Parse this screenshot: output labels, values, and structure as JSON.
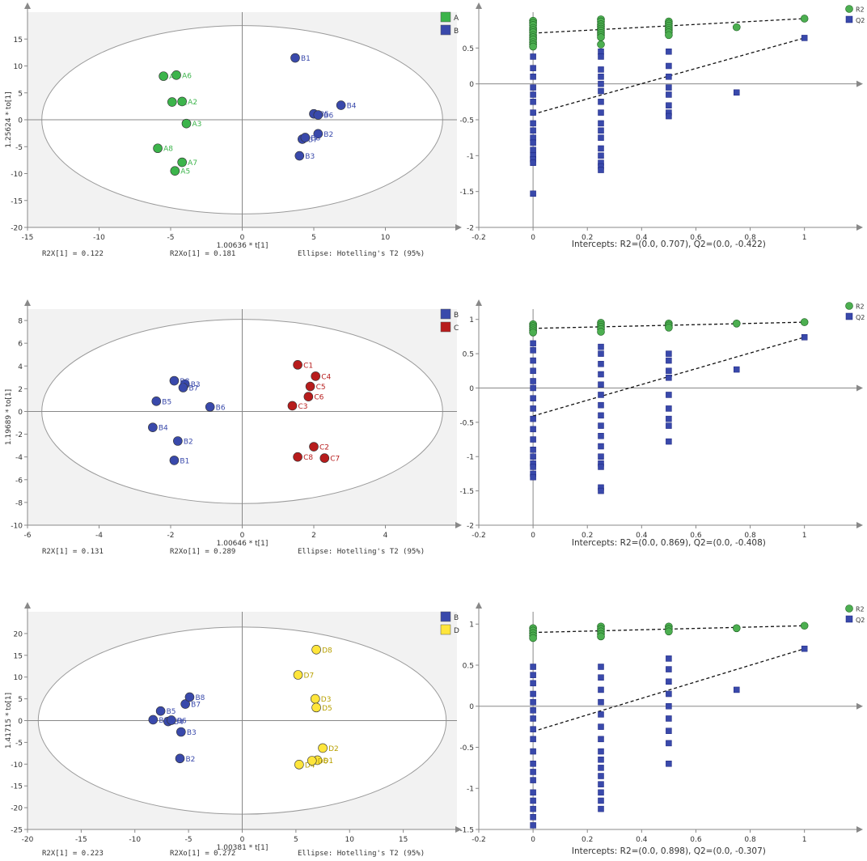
{
  "colors": {
    "A": "#3cb44b",
    "B": "#3949ab",
    "C": "#b71c1c",
    "D": "#ffe53b",
    "R2": "#4caf50",
    "Q2": "#3949ab",
    "score_bg": "#f2f2f2",
    "axis": "#888888",
    "text": "#333333"
  },
  "chart_data": [
    {
      "type": "scatter",
      "id": "score1",
      "title": "",
      "xlabel": "1.00636 * t[1]",
      "ylabel": "1.25624 * to[1]",
      "xlim": [
        -15,
        15
      ],
      "ylim": [
        -20,
        20
      ],
      "xticks": [
        -15,
        -10,
        -5,
        0,
        5,
        10
      ],
      "yticks": [
        -20,
        -15,
        -10,
        -5,
        0,
        5,
        10,
        15
      ],
      "ellipse": {
        "rx": 14,
        "ry": 17.5
      },
      "legend": [
        {
          "label": "A",
          "group": "A"
        },
        {
          "label": "B",
          "group": "B"
        }
      ],
      "points": [
        {
          "label": "A1",
          "group": "A",
          "x": -4.9,
          "y": 3.3
        },
        {
          "label": "A2",
          "group": "A",
          "x": -4.2,
          "y": 3.4
        },
        {
          "label": "A3",
          "group": "A",
          "x": -3.9,
          "y": -0.7
        },
        {
          "label": "A4",
          "group": "A",
          "x": -5.5,
          "y": 8.1
        },
        {
          "label": "A5",
          "group": "A",
          "x": -4.7,
          "y": -9.5
        },
        {
          "label": "A6",
          "group": "A",
          "x": -4.6,
          "y": 8.3
        },
        {
          "label": "A7",
          "group": "A",
          "x": -4.2,
          "y": -7.9
        },
        {
          "label": "A8",
          "group": "A",
          "x": -5.9,
          "y": -5.3
        },
        {
          "label": "B1",
          "group": "B",
          "x": 3.7,
          "y": 11.5
        },
        {
          "label": "B2",
          "group": "B",
          "x": 5.3,
          "y": -2.6
        },
        {
          "label": "B3",
          "group": "B",
          "x": 4.0,
          "y": -6.7
        },
        {
          "label": "B4",
          "group": "B",
          "x": 6.9,
          "y": 2.7
        },
        {
          "label": "B5",
          "group": "B",
          "x": 5.0,
          "y": 1.1
        },
        {
          "label": "B6",
          "group": "B",
          "x": 5.3,
          "y": 0.9
        },
        {
          "label": "B7",
          "group": "B",
          "x": 4.2,
          "y": -3.6
        },
        {
          "label": "B8",
          "group": "B",
          "x": 4.4,
          "y": -3.3
        }
      ],
      "stats": {
        "r2x": "R2X[1] = 0.122",
        "r2xo": "R2Xo[1] = 0.181",
        "ellipse": "Ellipse: Hotelling's T2 (95%)"
      }
    },
    {
      "type": "scatter",
      "id": "perm1",
      "title": "",
      "xlabel": "Intercepts: R2=(0.0, 0.707), Q2=(0.0, -0.422)",
      "ylabel": "",
      "xlim": [
        -0.2,
        1.15
      ],
      "ylim": [
        -2,
        1.0
      ],
      "xticks": [
        -0.2,
        0,
        0.2,
        0.4,
        0.6,
        0.8,
        1
      ],
      "yticks": [
        -2,
        -1.5,
        -1,
        -0.5,
        0,
        0.5
      ],
      "legend": [
        {
          "label": "R2",
          "series": "R2"
        },
        {
          "label": "Q2",
          "series": "Q2"
        }
      ],
      "series": [
        {
          "name": "R2",
          "x": [
            0,
            0,
            0,
            0,
            0,
            0,
            0,
            0,
            0,
            0,
            0,
            0,
            0.25,
            0.25,
            0.25,
            0.25,
            0.25,
            0.25,
            0.25,
            0.25,
            0.25,
            0.25,
            0.5,
            0.5,
            0.5,
            0.5,
            0.5,
            0.5,
            0.5,
            0.75,
            1.0
          ],
          "y": [
            0.88,
            0.85,
            0.82,
            0.78,
            0.75,
            0.72,
            0.68,
            0.65,
            0.62,
            0.58,
            0.55,
            0.52,
            0.9,
            0.87,
            0.83,
            0.8,
            0.77,
            0.74,
            0.71,
            0.68,
            0.65,
            0.55,
            0.87,
            0.84,
            0.81,
            0.78,
            0.75,
            0.72,
            0.68,
            0.79,
            0.91
          ]
        },
        {
          "name": "Q2",
          "x": [
            0,
            0,
            0,
            0,
            0,
            0,
            0,
            0,
            0,
            0,
            0,
            0,
            0,
            0,
            0,
            0,
            0.25,
            0.25,
            0.25,
            0.25,
            0.25,
            0.25,
            0.25,
            0.25,
            0.25,
            0.25,
            0.25,
            0.25,
            0.25,
            0.25,
            0.25,
            0.25,
            0.5,
            0.5,
            0.5,
            0.5,
            0.5,
            0.5,
            0.5,
            0.5,
            0.75,
            1.0
          ],
          "y": [
            0.38,
            0.22,
            0.1,
            -0.05,
            -0.15,
            -0.25,
            -0.4,
            -0.55,
            -0.65,
            -0.75,
            -0.82,
            -0.92,
            -1.0,
            -1.05,
            -1.1,
            -1.53,
            0.45,
            0.38,
            0.2,
            0.1,
            0.0,
            -0.1,
            -0.25,
            -0.4,
            -0.55,
            -0.65,
            -0.75,
            -0.9,
            -1.0,
            -1.1,
            -1.15,
            -1.2,
            0.45,
            0.25,
            0.1,
            -0.05,
            -0.15,
            -0.3,
            -0.4,
            -0.45,
            -0.12,
            0.64
          ]
        }
      ],
      "fit": {
        "R2": [
          0.707,
          0.91
        ],
        "Q2": [
          -0.422,
          0.64
        ]
      }
    },
    {
      "type": "scatter",
      "id": "score2",
      "title": "",
      "xlabel": "1.00646 * t[1]",
      "ylabel": "1.19689 * to[1]",
      "xlim": [
        -6,
        6
      ],
      "ylim": [
        -10,
        9
      ],
      "xticks": [
        -6,
        -4,
        -2,
        0,
        2,
        4
      ],
      "yticks": [
        -10,
        -8,
        -6,
        -4,
        -2,
        0,
        2,
        4,
        6,
        8
      ],
      "ellipse": {
        "rx": 5.6,
        "ry": 8.1
      },
      "legend": [
        {
          "label": "B",
          "group": "B"
        },
        {
          "label": "C",
          "group": "C"
        }
      ],
      "points": [
        {
          "label": "B1",
          "group": "B",
          "x": -1.9,
          "y": -4.3
        },
        {
          "label": "B2",
          "group": "B",
          "x": -1.8,
          "y": -2.6
        },
        {
          "label": "B3",
          "group": "B",
          "x": -1.6,
          "y": 2.4
        },
        {
          "label": "B4",
          "group": "B",
          "x": -2.5,
          "y": -1.4
        },
        {
          "label": "B5",
          "group": "B",
          "x": -2.4,
          "y": 0.9
        },
        {
          "label": "B6",
          "group": "B",
          "x": -0.9,
          "y": 0.4
        },
        {
          "label": "B7",
          "group": "B",
          "x": -1.65,
          "y": 2.1
        },
        {
          "label": "B8",
          "group": "B",
          "x": -1.9,
          "y": 2.7
        },
        {
          "label": "C1",
          "group": "C",
          "x": 1.55,
          "y": 4.1
        },
        {
          "label": "C2",
          "group": "C",
          "x": 2.0,
          "y": -3.1
        },
        {
          "label": "C3",
          "group": "C",
          "x": 1.4,
          "y": 0.5
        },
        {
          "label": "C4",
          "group": "C",
          "x": 2.05,
          "y": 3.1
        },
        {
          "label": "C5",
          "group": "C",
          "x": 1.9,
          "y": 2.2
        },
        {
          "label": "C6",
          "group": "C",
          "x": 1.85,
          "y": 1.3
        },
        {
          "label": "C7",
          "group": "C",
          "x": 2.3,
          "y": -4.1
        },
        {
          "label": "C8",
          "group": "C",
          "x": 1.55,
          "y": -4.0
        }
      ],
      "stats": {
        "r2x": "R2X[1] = 0.131",
        "r2xo": "R2Xo[1] = 0.289",
        "ellipse": "Ellipse: Hotelling's T2 (95%)"
      }
    },
    {
      "type": "scatter",
      "id": "perm2",
      "title": "",
      "xlabel": "Intercepts: R2=(0.0, 0.869), Q2=(0.0, -0.408)",
      "ylabel": "",
      "xlim": [
        -0.2,
        1.15
      ],
      "ylim": [
        -2,
        1.15
      ],
      "xticks": [
        -0.2,
        0,
        0.2,
        0.4,
        0.6,
        0.8,
        1
      ],
      "yticks": [
        -2,
        -1.5,
        -1,
        -0.5,
        0,
        0.5,
        1
      ],
      "legend": [
        {
          "label": "R2",
          "series": "R2"
        },
        {
          "label": "Q2",
          "series": "Q2"
        }
      ],
      "series": [
        {
          "name": "R2",
          "x": [
            0,
            0,
            0,
            0,
            0,
            0.25,
            0.25,
            0.25,
            0.25,
            0.25,
            0.5,
            0.5,
            0.5,
            0.75,
            1.0
          ],
          "y": [
            0.93,
            0.9,
            0.87,
            0.84,
            0.81,
            0.95,
            0.92,
            0.89,
            0.86,
            0.82,
            0.94,
            0.91,
            0.88,
            0.94,
            0.96
          ]
        },
        {
          "name": "Q2",
          "x": [
            0,
            0,
            0,
            0,
            0,
            0,
            0,
            0,
            0,
            0,
            0,
            0,
            0,
            0,
            0,
            0,
            0,
            0.25,
            0.25,
            0.25,
            0.25,
            0.25,
            0.25,
            0.25,
            0.25,
            0.25,
            0.25,
            0.25,
            0.25,
            0.25,
            0.25,
            0.25,
            0.25,
            0.5,
            0.5,
            0.5,
            0.5,
            0.5,
            0.5,
            0.5,
            0.5,
            0.5,
            0.75,
            1.0
          ],
          "y": [
            0.65,
            0.55,
            0.4,
            0.25,
            0.1,
            0.0,
            -0.15,
            -0.3,
            -0.45,
            -0.6,
            -0.75,
            -0.9,
            -1.0,
            -1.1,
            -1.15,
            -1.25,
            -1.3,
            0.6,
            0.5,
            0.35,
            0.2,
            0.05,
            -0.1,
            -0.25,
            -0.4,
            -0.55,
            -0.7,
            -0.85,
            -1.0,
            -1.1,
            -1.15,
            -1.45,
            -1.5,
            0.5,
            0.4,
            0.25,
            0.15,
            -0.1,
            -0.3,
            -0.45,
            -0.55,
            -0.78,
            0.27,
            0.74
          ]
        }
      ],
      "fit": {
        "R2": [
          0.869,
          0.96
        ],
        "Q2": [
          -0.408,
          0.74
        ]
      }
    },
    {
      "type": "scatter",
      "id": "score3",
      "title": "",
      "xlabel": "1.00381 * t[1]",
      "ylabel": "1.41715 * to[1]",
      "xlim": [
        -20,
        20
      ],
      "ylim": [
        -25,
        25
      ],
      "xticks": [
        -20,
        -15,
        -10,
        -5,
        0,
        5,
        10,
        15
      ],
      "yticks": [
        -25,
        -20,
        -15,
        -10,
        -5,
        0,
        5,
        10,
        15,
        20
      ],
      "ellipse": {
        "rx": 19,
        "ry": 21.5
      },
      "legend": [
        {
          "label": "B",
          "group": "B"
        },
        {
          "label": "D",
          "group": "D"
        }
      ],
      "points": [
        {
          "label": "B1",
          "group": "B",
          "x": -8.3,
          "y": 0.2
        },
        {
          "label": "B2",
          "group": "B",
          "x": -5.8,
          "y": -8.7
        },
        {
          "label": "B3",
          "group": "B",
          "x": -5.7,
          "y": -2.6
        },
        {
          "label": "B4",
          "group": "B",
          "x": -6.9,
          "y": -0.2
        },
        {
          "label": "B5",
          "group": "B",
          "x": -7.6,
          "y": 2.2
        },
        {
          "label": "B6",
          "group": "B",
          "x": -6.6,
          "y": 0.1
        },
        {
          "label": "B7",
          "group": "B",
          "x": -5.3,
          "y": 3.8
        },
        {
          "label": "B8",
          "group": "B",
          "x": -4.9,
          "y": 5.4
        },
        {
          "label": "D1",
          "group": "D",
          "x": 7.0,
          "y": -9.1
        },
        {
          "label": "D2",
          "group": "D",
          "x": 7.5,
          "y": -6.3
        },
        {
          "label": "D3",
          "group": "D",
          "x": 6.8,
          "y": 5.0
        },
        {
          "label": "D4",
          "group": "D",
          "x": 5.3,
          "y": -10.1
        },
        {
          "label": "D5",
          "group": "D",
          "x": 6.9,
          "y": 3.0
        },
        {
          "label": "D6",
          "group": "D",
          "x": 6.5,
          "y": -9.2
        },
        {
          "label": "D7",
          "group": "D",
          "x": 5.2,
          "y": 10.5
        },
        {
          "label": "D8",
          "group": "D",
          "x": 6.9,
          "y": 16.3
        }
      ],
      "stats": {
        "r2x": "R2X[1] = 0.223",
        "r2xo": "R2Xo[1] = 0.272",
        "ellipse": "Ellipse: Hotelling's T2 (95%)"
      }
    },
    {
      "type": "scatter",
      "id": "perm3",
      "title": "",
      "xlabel": "Intercepts: R2=(0.0, 0.898), Q2=(0.0, -0.307)",
      "ylabel": "",
      "xlim": [
        -0.2,
        1.15
      ],
      "ylim": [
        -1.5,
        1.15
      ],
      "xticks": [
        -0.2,
        0,
        0.2,
        0.4,
        0.6,
        0.8,
        1
      ],
      "yticks": [
        -1.5,
        -1,
        -0.5,
        0,
        0.5,
        1
      ],
      "legend": [
        {
          "label": "R2",
          "series": "R2"
        },
        {
          "label": "Q2",
          "series": "Q2"
        }
      ],
      "series": [
        {
          "name": "R2",
          "x": [
            0,
            0,
            0,
            0,
            0,
            0.25,
            0.25,
            0.25,
            0.25,
            0.25,
            0.5,
            0.5,
            0.5,
            0.75,
            1.0
          ],
          "y": [
            0.95,
            0.92,
            0.89,
            0.86,
            0.83,
            0.97,
            0.94,
            0.91,
            0.88,
            0.85,
            0.97,
            0.94,
            0.91,
            0.95,
            0.98
          ]
        },
        {
          "name": "Q2",
          "x": [
            0,
            0,
            0,
            0,
            0,
            0,
            0,
            0,
            0,
            0,
            0,
            0,
            0,
            0,
            0,
            0,
            0,
            0,
            0.25,
            0.25,
            0.25,
            0.25,
            0.25,
            0.25,
            0.25,
            0.25,
            0.25,
            0.25,
            0.25,
            0.25,
            0.25,
            0.25,
            0.25,
            0.5,
            0.5,
            0.5,
            0.5,
            0.5,
            0.5,
            0.5,
            0.5,
            0.5,
            0.75,
            1.0
          ],
          "y": [
            0.48,
            0.38,
            0.28,
            0.15,
            0.05,
            -0.05,
            -0.15,
            -0.28,
            -0.4,
            -0.55,
            -0.7,
            -0.8,
            -0.9,
            -1.05,
            -1.15,
            -1.25,
            -1.35,
            -1.45,
            0.48,
            0.35,
            0.2,
            0.05,
            -0.1,
            -0.25,
            -0.4,
            -0.55,
            -0.65,
            -0.75,
            -0.85,
            -0.95,
            -1.05,
            -1.15,
            -1.25,
            0.58,
            0.45,
            0.3,
            0.15,
            0.0,
            -0.15,
            -0.3,
            -0.45,
            -0.7,
            0.2,
            0.7
          ]
        }
      ],
      "fit": {
        "R2": [
          0.898,
          0.98
        ],
        "Q2": [
          -0.307,
          0.7
        ]
      }
    }
  ]
}
